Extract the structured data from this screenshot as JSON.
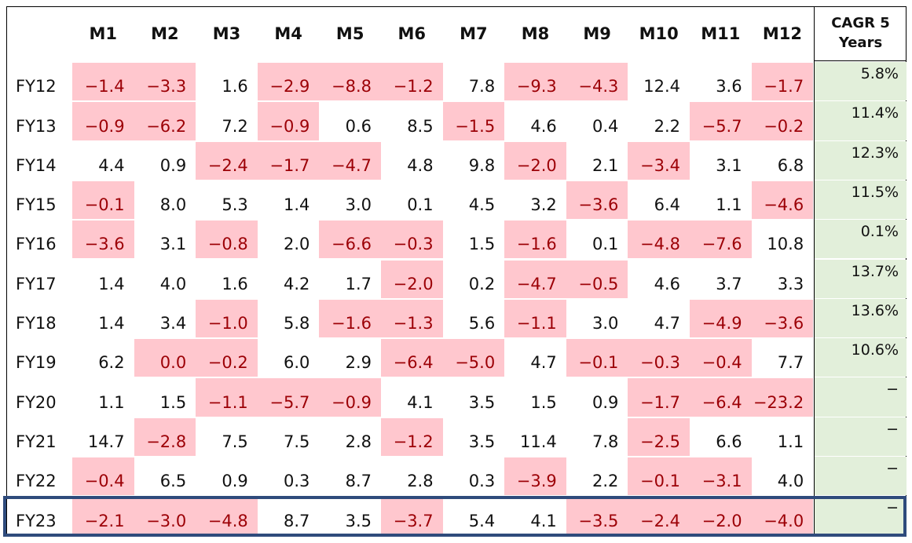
{
  "columns": [
    "M1",
    "M2",
    "M3",
    "M4",
    "M5",
    "M6",
    "M7",
    "M8",
    "M9",
    "M10",
    "M11",
    "M12"
  ],
  "cagr_header": [
    "CAGR 5",
    "Years"
  ],
  "rows": [
    {
      "label": "FY12",
      "values": [
        "-1.4",
        "-3.3",
        "1.6",
        "-2.9",
        "-8.8",
        "-1.2",
        "7.8",
        "-9.3",
        "-4.3",
        "12.4",
        "3.6",
        "-1.7"
      ],
      "cagr": "5.8%"
    },
    {
      "label": "FY13",
      "values": [
        "-0.9",
        "-6.2",
        "7.2",
        "-0.9",
        "0.6",
        "8.5",
        "-1.5",
        "4.6",
        "0.4",
        "2.2",
        "-5.7",
        "-0.2"
      ],
      "cagr": "11.4%"
    },
    {
      "label": "FY14",
      "values": [
        "4.4",
        "0.9",
        "-2.4",
        "-1.7",
        "-4.7",
        "4.8",
        "9.8",
        "-2.0",
        "2.1",
        "-3.4",
        "3.1",
        "6.8"
      ],
      "cagr": "12.3%"
    },
    {
      "label": "FY15",
      "values": [
        "-0.1",
        "8.0",
        "5.3",
        "1.4",
        "3.0",
        "0.1",
        "4.5",
        "3.2",
        "-3.6",
        "6.4",
        "1.1",
        "-4.6"
      ],
      "cagr": "11.5%"
    },
    {
      "label": "FY16",
      "values": [
        "-3.6",
        "3.1",
        "-0.8",
        "2.0",
        "-6.6",
        "-0.3",
        "1.5",
        "-1.6",
        "0.1",
        "-4.8",
        "-7.6",
        "10.8"
      ],
      "cagr": "0.1%"
    },
    {
      "label": "FY17",
      "values": [
        "1.4",
        "4.0",
        "1.6",
        "4.2",
        "1.7",
        "-2.0",
        "0.2",
        "-4.7",
        "-0.5",
        "4.6",
        "3.7",
        "3.3"
      ],
      "cagr": "13.7%"
    },
    {
      "label": "FY18",
      "values": [
        "1.4",
        "3.4",
        "-1.0",
        "5.8",
        "-1.6",
        "-1.3",
        "5.6",
        "-1.1",
        "3.0",
        "4.7",
        "-4.9",
        "-3.6"
      ],
      "cagr": "13.6%"
    },
    {
      "label": "FY19",
      "values": [
        "6.2",
        "0.0",
        "-0.2",
        "6.0",
        "2.9",
        "-6.4",
        "-5.0",
        "4.7",
        "-0.1",
        "-0.3",
        "-0.4",
        "7.7"
      ],
      "cagr": "10.6%"
    },
    {
      "label": "FY20",
      "values": [
        "1.1",
        "1.5",
        "-1.1",
        "-5.7",
        "-0.9",
        "4.1",
        "3.5",
        "1.5",
        "0.9",
        "-1.7",
        "-6.4",
        "-23.2"
      ],
      "cagr": "-"
    },
    {
      "label": "FY21",
      "values": [
        "14.7",
        "-2.8",
        "7.5",
        "7.5",
        "2.8",
        "-1.2",
        "3.5",
        "11.4",
        "7.8",
        "-2.5",
        "6.6",
        "1.1"
      ],
      "cagr": "-"
    },
    {
      "label": "FY22",
      "values": [
        "-0.4",
        "6.5",
        "0.9",
        "0.3",
        "8.7",
        "2.8",
        "0.3",
        "-3.9",
        "2.2",
        "-0.1",
        "-3.1",
        "4.0"
      ],
      "cagr": "-"
    },
    {
      "label": "FY23",
      "values": [
        "-2.1",
        "-3.0",
        "-4.8",
        "8.7",
        "3.5",
        "-3.7",
        "5.4",
        "4.1",
        "-3.5",
        "-2.4",
        "-2.0",
        "-4.0"
      ],
      "cagr": "-"
    }
  ],
  "shaded": [
    [
      1,
      1,
      0,
      1,
      1,
      1,
      0,
      1,
      1,
      0,
      0,
      1
    ],
    [
      1,
      1,
      0,
      1,
      0,
      0,
      1,
      0,
      0,
      0,
      1,
      1
    ],
    [
      0,
      0,
      1,
      1,
      1,
      0,
      0,
      1,
      0,
      1,
      0,
      0
    ],
    [
      1,
      0,
      0,
      0,
      0,
      0,
      0,
      0,
      1,
      0,
      0,
      1
    ],
    [
      1,
      0,
      1,
      0,
      1,
      1,
      0,
      1,
      0,
      1,
      1,
      0
    ],
    [
      0,
      0,
      0,
      0,
      0,
      1,
      0,
      1,
      1,
      0,
      0,
      0
    ],
    [
      0,
      0,
      1,
      0,
      1,
      1,
      0,
      1,
      0,
      0,
      1,
      1
    ],
    [
      0,
      1,
      1,
      0,
      0,
      1,
      1,
      0,
      1,
      1,
      1,
      0
    ],
    [
      0,
      0,
      1,
      1,
      1,
      0,
      0,
      0,
      0,
      1,
      1,
      1
    ],
    [
      0,
      1,
      0,
      0,
      0,
      1,
      0,
      0,
      0,
      1,
      0,
      0
    ],
    [
      1,
      0,
      0,
      0,
      0,
      0,
      0,
      1,
      0,
      1,
      1,
      0
    ],
    [
      1,
      1,
      1,
      0,
      0,
      1,
      0,
      0,
      1,
      1,
      1,
      1
    ]
  ],
  "colors": {
    "negative_fill": "#ffc7ce",
    "negative_text": "#9c0006",
    "cagr_fill": "#e2efda",
    "highlight_border": "#2f4b7c"
  }
}
